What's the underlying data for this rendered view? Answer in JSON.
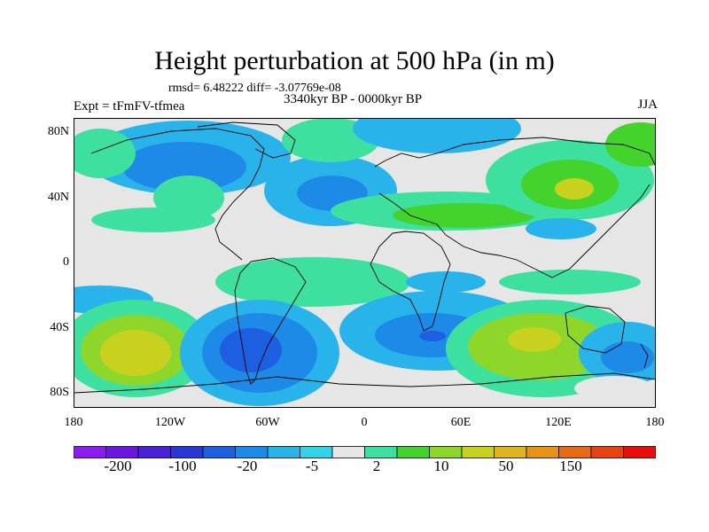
{
  "title": "Height perturbation at 500 hPa (in m)",
  "stats": "rmsd= 6.48222 diff= -3.07769e-08",
  "experiment": "Expt = tFmFV-tfmea",
  "period": "3340kyr BP - 0000kyr BP",
  "season": "JJA",
  "lat_ticks": [
    "80N",
    "40N",
    "0",
    "40S",
    "80S"
  ],
  "lon_ticks": [
    "180",
    "120W",
    "60W",
    "0",
    "60E",
    "120E",
    "180"
  ],
  "colorbar": {
    "colors": [
      "#8a1cf0",
      "#6a18e0",
      "#4a20d8",
      "#2a36d6",
      "#1e5ee0",
      "#1e8ae8",
      "#28b4ea",
      "#34d2e6",
      "#e6e6e6",
      "#3ee0a0",
      "#44d22c",
      "#8ed62a",
      "#c8d21e",
      "#e0b41c",
      "#e89218",
      "#e86a14",
      "#e84210",
      "#e80e0e"
    ],
    "labels": [
      "-200",
      "-100",
      "-20",
      "-5",
      "2",
      "10",
      "50",
      "150"
    ]
  }
}
